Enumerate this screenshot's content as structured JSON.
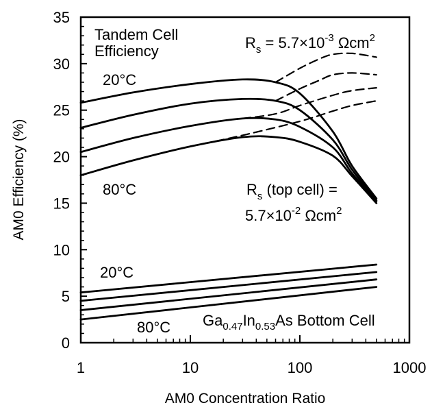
{
  "chart_data": {
    "type": "line",
    "x_scale": "log",
    "xlim": [
      1,
      1000
    ],
    "ylim": [
      0,
      35
    ],
    "xlabel": "AM0 Concentration Ratio",
    "ylabel": "AM0 Efficiency (%)",
    "x_ticks": [
      "1",
      "10",
      "100",
      "1000"
    ],
    "y_ticks": [
      "0",
      "5",
      "10",
      "15",
      "20",
      "25",
      "30",
      "35"
    ],
    "grid": false,
    "annotations": {
      "tandem_title_1": "Tandem Cell",
      "tandem_title_2": "Efficiency",
      "rs_ideal_prefix": "R",
      "rs_ideal_sub": "s",
      "rs_ideal_eq": " = 5.7×10",
      "rs_ideal_exp": "-3",
      "rs_ideal_unit": " Ωcm",
      "rs_ideal_unit_exp": "2",
      "temp_tandem_high": "20°C",
      "temp_tandem_low": "80°C",
      "rs_top_prefix": "R",
      "rs_top_sub": "s",
      "rs_top_rest": " (top cell) =",
      "rs_top_value": "5.7×10",
      "rs_top_exp": "-2",
      "rs_top_unit": " Ωcm",
      "rs_top_unit_exp": "2",
      "temp_bottom_high": "20°C",
      "temp_bottom_low": "80°C",
      "bottom_p1": "Ga",
      "bottom_s1": "0.47",
      "bottom_p2": "In",
      "bottom_s2": "0.53",
      "bottom_p3": "As Bottom Cell"
    },
    "series": [
      {
        "group": "tandem",
        "style": "solid",
        "x": [
          1,
          3,
          10,
          30,
          60,
          100,
          200,
          300,
          500
        ],
        "y": [
          25.8,
          26.9,
          27.8,
          28.3,
          28.0,
          26.8,
          22.7,
          19.0,
          15.5
        ]
      },
      {
        "group": "tandem",
        "style": "solid",
        "x": [
          1,
          3,
          10,
          30,
          60,
          100,
          200,
          300,
          500
        ],
        "y": [
          23.1,
          24.5,
          25.7,
          26.2,
          26.0,
          25.0,
          21.8,
          18.6,
          15.3
        ]
      },
      {
        "group": "tandem",
        "style": "solid",
        "x": [
          1,
          3,
          10,
          30,
          60,
          100,
          200,
          300,
          500
        ],
        "y": [
          20.5,
          22.0,
          23.3,
          24.1,
          24.0,
          23.2,
          21.0,
          18.2,
          15.2
        ]
      },
      {
        "group": "tandem",
        "style": "solid",
        "x": [
          1,
          3,
          10,
          30,
          60,
          100,
          200,
          300,
          500
        ],
        "y": [
          18.0,
          19.6,
          21.1,
          22.1,
          22.1,
          21.6,
          20.1,
          17.9,
          15.0
        ]
      },
      {
        "group": "tandem",
        "style": "dashed",
        "x": [
          60,
          100,
          150,
          200,
          300,
          500
        ],
        "y": [
          28.0,
          29.5,
          30.5,
          31.0,
          31.1,
          30.7
        ]
      },
      {
        "group": "tandem",
        "style": "dashed",
        "x": [
          60,
          100,
          150,
          200,
          300,
          500
        ],
        "y": [
          26.0,
          27.3,
          28.2,
          28.8,
          29.0,
          28.8
        ]
      },
      {
        "group": "tandem",
        "style": "dashed",
        "x": [
          30,
          60,
          100,
          200,
          300,
          500
        ],
        "y": [
          24.1,
          24.6,
          25.5,
          26.6,
          27.1,
          27.4
        ]
      },
      {
        "group": "tandem",
        "style": "dashed",
        "x": [
          10,
          30,
          100,
          200,
          300,
          500
        ],
        "y": [
          21.1,
          22.3,
          23.8,
          24.9,
          25.5,
          26.0
        ]
      },
      {
        "group": "bottom",
        "style": "solid",
        "x": [
          1,
          500
        ],
        "y": [
          5.4,
          8.4
        ]
      },
      {
        "group": "bottom",
        "style": "solid",
        "x": [
          1,
          500
        ],
        "y": [
          4.5,
          7.6
        ]
      },
      {
        "group": "bottom",
        "style": "solid",
        "x": [
          1,
          500
        ],
        "y": [
          3.5,
          6.8
        ]
      },
      {
        "group": "bottom",
        "style": "solid",
        "x": [
          1,
          500
        ],
        "y": [
          2.5,
          6.0
        ]
      }
    ]
  }
}
